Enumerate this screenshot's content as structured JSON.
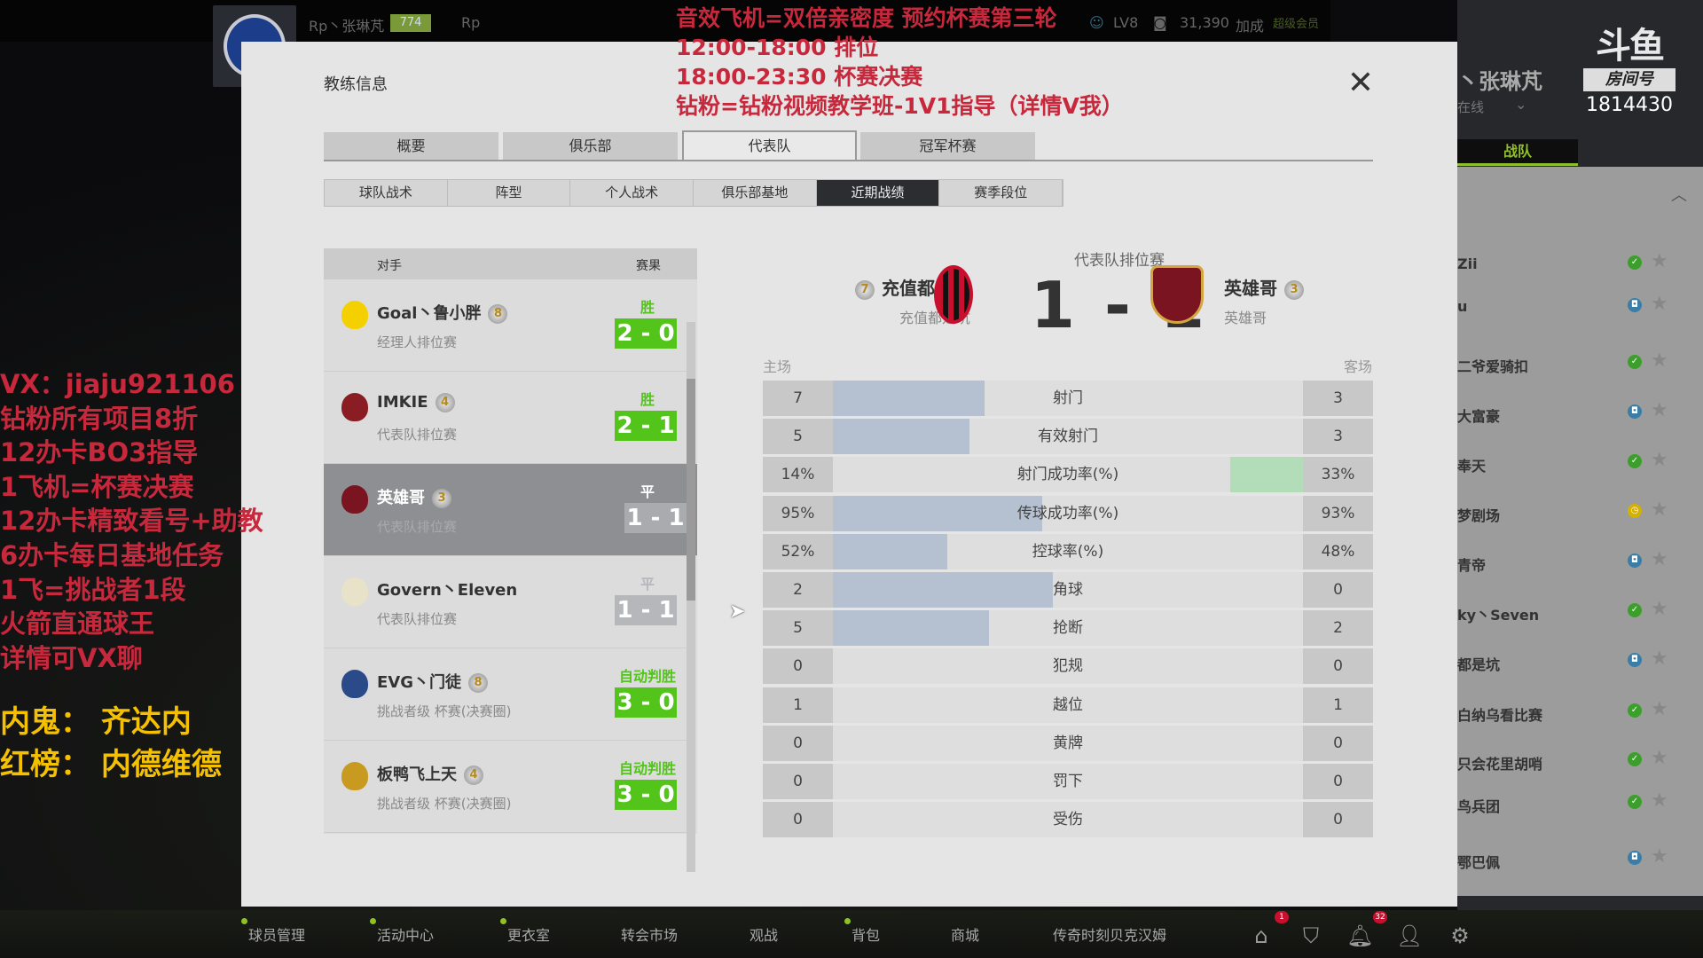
{
  "stream_header": {
    "player_name": "Rp丶张琳芃",
    "level_badge": "774",
    "club_tag": "Rp",
    "level": "LV8",
    "coins": "31,390",
    "bonus_label": "加成",
    "vip_label": "超级会员"
  },
  "streamer_panel": {
    "name": "丶张琳芃",
    "status": "在线",
    "logo": "斗鱼",
    "room_label": "房间号",
    "room_number": "1814430",
    "tab": "战队",
    "members": [
      {
        "name": "Zii",
        "status": "online"
      },
      {
        "name": "u",
        "status": "in-game"
      },
      {
        "name": "二爷爱骑扣",
        "status": "online"
      },
      {
        "name": "大富豪",
        "status": "in-game"
      },
      {
        "name": "奉天",
        "status": "online"
      },
      {
        "name": "梦剧场",
        "status": "away"
      },
      {
        "name": "青帝",
        "status": "in-game"
      },
      {
        "name": "ky丶Seven",
        "status": "online"
      },
      {
        "name": "都是坑",
        "status": "in-game"
      },
      {
        "name": "白纳乌看比赛",
        "status": "online"
      },
      {
        "name": "只会花里胡哨",
        "status": "online"
      },
      {
        "name": "鸟兵团",
        "status": "online"
      },
      {
        "name": "鄂巴佩",
        "status": "in-game"
      }
    ]
  },
  "modal": {
    "title": "教练信息",
    "tabs": [
      {
        "label": "概要"
      },
      {
        "label": "俱乐部"
      },
      {
        "label": "代表队",
        "active": true
      },
      {
        "label": "冠军杯赛"
      }
    ],
    "subtabs": [
      {
        "label": "球队战术"
      },
      {
        "label": "阵型"
      },
      {
        "label": "个人战术"
      },
      {
        "label": "俱乐部基地"
      },
      {
        "label": "近期战绩",
        "active": true
      },
      {
        "label": "赛季段位"
      }
    ],
    "list_header": {
      "opponent": "对手",
      "result": "赛果"
    },
    "matches": [
      {
        "opponent": "Goal丶鲁小胖",
        "rank": "8",
        "type": "经理人排位赛",
        "result": "胜",
        "score": "2 - 0",
        "outcome": "win",
        "crest_color": "#f5d000"
      },
      {
        "opponent": "IMKIE",
        "rank": "4",
        "type": "代表队排位赛",
        "result": "胜",
        "score": "2 - 1",
        "outcome": "win",
        "crest_color": "#8a1c24"
      },
      {
        "opponent": "英雄哥",
        "rank": "3",
        "type": "代表队排位赛",
        "result": "平",
        "score": "1 - 1",
        "outcome": "draw",
        "selected": true,
        "crest_color": "#7a1420"
      },
      {
        "opponent": "Govern丶Eleven",
        "rank": "",
        "type": "代表队排位赛",
        "result": "平",
        "score": "1 - 1",
        "outcome": "draw",
        "crest_color": "#e8e2c8"
      },
      {
        "opponent": "EVG丶门徒",
        "rank": "8",
        "type": "挑战者级 杯赛(决赛圈)",
        "result": "自动判胜",
        "score": "3 - 0",
        "outcome": "win",
        "crest_color": "#2a4a8a"
      },
      {
        "opponent": "板鸭飞上天",
        "rank": "4",
        "type": "挑战者级 杯赛(决赛圈)",
        "result": "自动判胜",
        "score": "3 - 0",
        "outcome": "win",
        "crest_color": "#c89a20"
      }
    ],
    "detail": {
      "competition": "代表队排位赛",
      "score": "1 - 1",
      "home": {
        "name": "充值都是坑",
        "sub": "充值都是坑",
        "rank": "7"
      },
      "away": {
        "name": "英雄哥",
        "sub": "英雄哥",
        "rank": "3"
      },
      "home_label": "主场",
      "away_label": "客场",
      "stats": [
        {
          "label": "射门",
          "home": "7",
          "away": "3",
          "bar_side": "home",
          "bar": 0.69
        },
        {
          "label": "有效射门",
          "home": "5",
          "away": "3",
          "bar_side": "home",
          "bar": 0.62
        },
        {
          "label": "射门成功率(%)",
          "home": "14%",
          "away": "33%",
          "bar_side": "away",
          "bar": 0.33
        },
        {
          "label": "传球成功率(%)",
          "home": "95%",
          "away": "93%",
          "bar_side": "home",
          "bar": 0.95
        },
        {
          "label": "控球率(%)",
          "home": "52%",
          "away": "48%",
          "bar_side": "home",
          "bar": 0.52
        },
        {
          "label": "角球",
          "home": "2",
          "away": "0",
          "bar_side": "home",
          "bar": 1.0
        },
        {
          "label": "抢断",
          "home": "5",
          "away": "2",
          "bar_side": "home",
          "bar": 0.71
        },
        {
          "label": "犯规",
          "home": "0",
          "away": "0",
          "bar_side": "none",
          "bar": 0
        },
        {
          "label": "越位",
          "home": "1",
          "away": "1",
          "bar_side": "none",
          "bar": 0
        },
        {
          "label": "黄牌",
          "home": "0",
          "away": "0",
          "bar_side": "none",
          "bar": 0
        },
        {
          "label": "罚下",
          "home": "0",
          "away": "0",
          "bar_side": "none",
          "bar": 0
        },
        {
          "label": "受伤",
          "home": "0",
          "away": "0",
          "bar_side": "none",
          "bar": 0
        }
      ]
    }
  },
  "bottom_nav": [
    {
      "label": "球员管理",
      "dot": true
    },
    {
      "label": "活动中心",
      "dot": true
    },
    {
      "label": "更衣室",
      "dot": true
    },
    {
      "label": "转会市场"
    },
    {
      "label": "观战"
    },
    {
      "label": "背包",
      "dot": true
    },
    {
      "label": "商城"
    },
    {
      "label": "传奇时刻贝克汉姆"
    }
  ],
  "bottom_icons": [
    {
      "name": "home-icon",
      "badge": "1"
    },
    {
      "name": "shield-icon"
    },
    {
      "name": "bell-icon",
      "badge": "32"
    },
    {
      "name": "profile-icon"
    },
    {
      "name": "gear-icon"
    }
  ],
  "overlay": {
    "top_lines": [
      "音效飞机=双倍亲密度  预约杯赛第三轮",
      "12:00-18:00 排位",
      "18:00-23:30 杯赛决赛",
      "钻粉=钻粉视频教学班-1V1指导（详情V我）"
    ],
    "left_lines": [
      "VX：jiaju921106",
      "钻粉所有项目8折",
      "12办卡BO3指导",
      "1飞机=杯赛决赛",
      "12办卡精致看号+助教",
      "6办卡每日基地任务",
      "1飞=挑战者1段",
      "火箭直通球王",
      "详情可VX聊"
    ],
    "yellow_lines": [
      "内鬼：  齐达内",
      "红榜：  内德维德"
    ]
  },
  "colors": {
    "win": "#52c41a",
    "draw": "#b5b7bb",
    "bar_home": "#b5c1d1",
    "bar_away": "#b3dcb8",
    "overlay_red": "#c8283c",
    "overlay_yellow": "#f5c000",
    "accent_green": "#8fbf2a"
  }
}
